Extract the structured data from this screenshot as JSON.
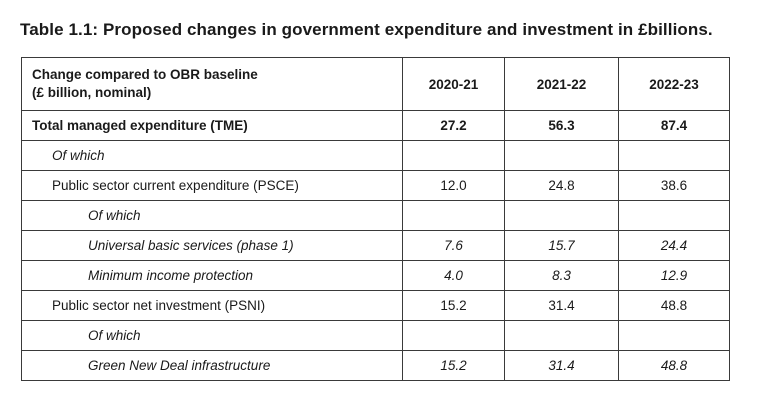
{
  "title": "Table 1.1: Proposed changes in government expenditure and investment in £billions.",
  "header": {
    "label_line1": "Change compared to OBR baseline",
    "label_line2": "(£ billion, nominal)",
    "years": [
      "2020-21",
      "2021-22",
      "2022-23"
    ]
  },
  "rows": [
    {
      "label": "Total managed expenditure (TME)",
      "values": [
        "27.2",
        "56.3",
        "87.4"
      ]
    },
    {
      "label": "Of which",
      "values": [
        "",
        "",
        ""
      ]
    },
    {
      "label": "Public sector current expenditure (PSCE)",
      "values": [
        "12.0",
        "24.8",
        "38.6"
      ]
    },
    {
      "label": "Of which",
      "values": [
        "",
        "",
        ""
      ]
    },
    {
      "label": "Universal basic services (phase 1)",
      "values": [
        "7.6",
        "15.7",
        "24.4"
      ]
    },
    {
      "label": "Minimum income protection",
      "values": [
        "4.0",
        "8.3",
        "12.9"
      ]
    },
    {
      "label": "Public sector net investment (PSNI)",
      "values": [
        "15.2",
        "31.4",
        "48.8"
      ]
    },
    {
      "label": "Of which",
      "values": [
        "",
        "",
        ""
      ]
    },
    {
      "label": "Green New Deal infrastructure",
      "values": [
        "15.2",
        "31.4",
        "48.8"
      ]
    }
  ]
}
